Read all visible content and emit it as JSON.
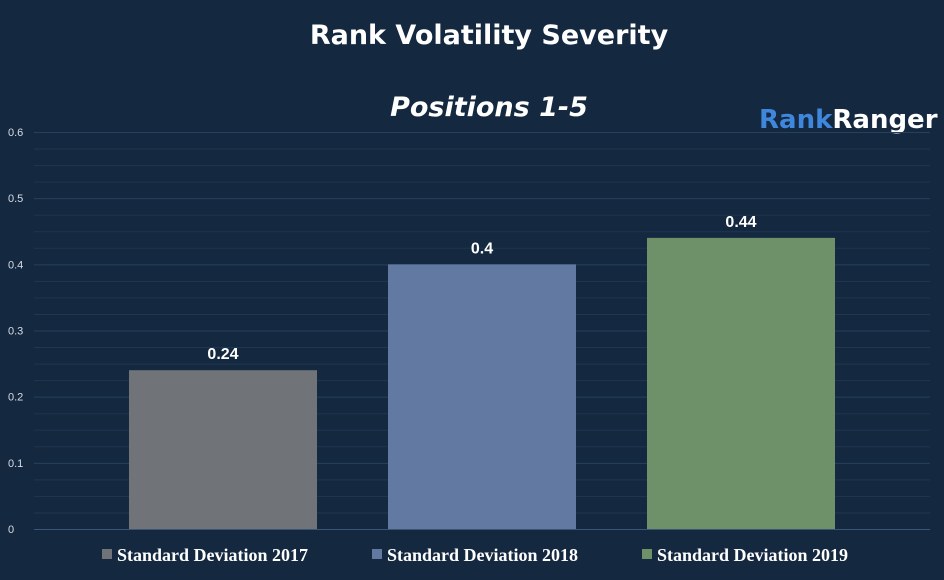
{
  "chart_data": {
    "type": "bar",
    "title": "Rank Volatility Severity",
    "subtitle": "Positions 1-5",
    "categories": [
      "Standard Deviation 2017",
      "Standard Deviation 2018",
      "Standard Deviation 2019"
    ],
    "values": [
      0.24,
      0.4,
      0.44
    ],
    "data_labels": [
      "0.24",
      "0.4",
      "0.44"
    ],
    "colors": [
      "#707478",
      "#6279a1",
      "#6f9169"
    ],
    "ylim": [
      0,
      0.6
    ],
    "yticks": [
      0,
      0.1,
      0.2,
      0.3,
      0.4,
      0.5,
      0.6
    ],
    "ytick_labels": [
      "0",
      "0.1",
      "0.2",
      "0.3",
      "0.4",
      "0.5",
      "0.6"
    ],
    "xlabel": "",
    "ylabel": "",
    "grid": true,
    "legend_position": "bottom"
  },
  "logo": {
    "part1": "Rank",
    "part2": "Ranger",
    "color1": "#3f86dd",
    "color2": "#ffffff"
  },
  "colors": {
    "background": "#142840",
    "grid": "#26415e"
  }
}
